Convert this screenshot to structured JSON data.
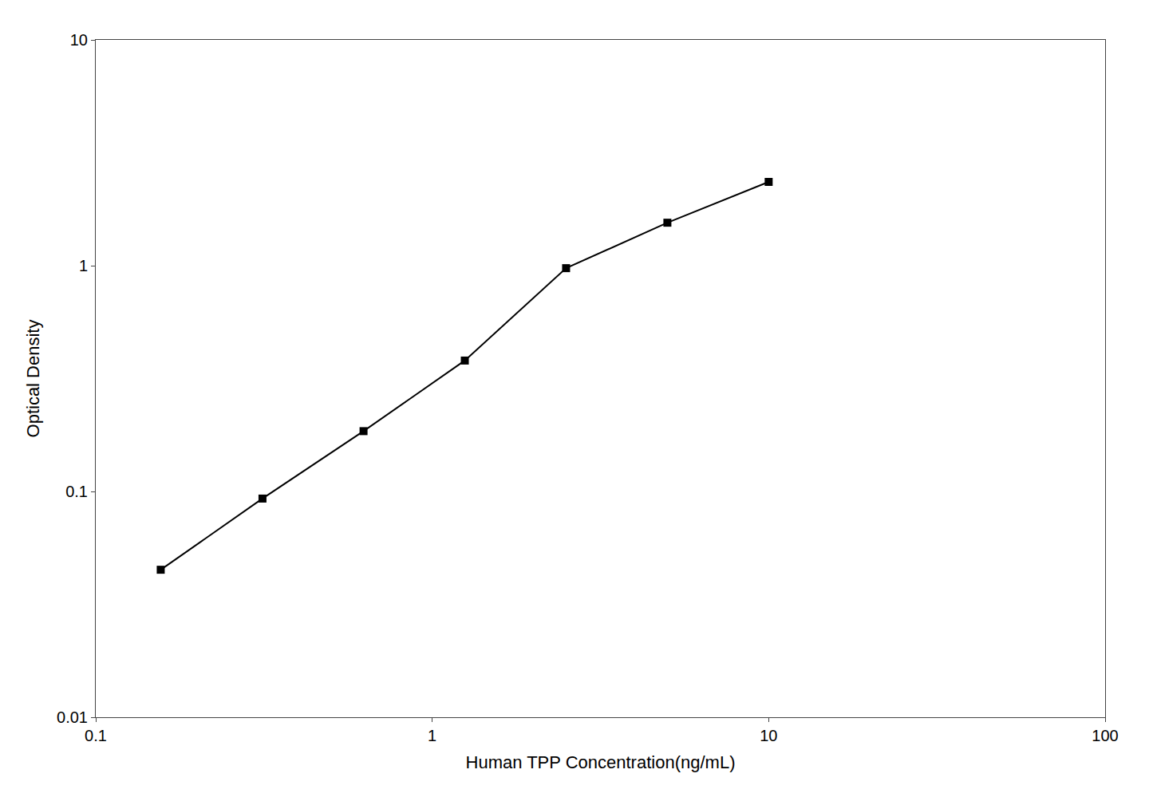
{
  "chart_data": {
    "type": "line",
    "x": [
      0.156,
      0.313,
      0.625,
      1.25,
      2.5,
      5.0,
      10.0
    ],
    "values": [
      0.045,
      0.093,
      0.185,
      0.38,
      0.975,
      1.55,
      2.35
    ],
    "color": "#000000",
    "marker": "square",
    "xlabel": "Human TPP Concentration(ng/mL)",
    "ylabel": "Optical Density",
    "xlim": [
      0.1,
      100
    ],
    "ylim": [
      0.01,
      10
    ],
    "xticks": [
      0.1,
      1,
      10,
      100
    ],
    "yticks": [
      0.01,
      0.1,
      1,
      10
    ],
    "log": true,
    "grid": false
  }
}
